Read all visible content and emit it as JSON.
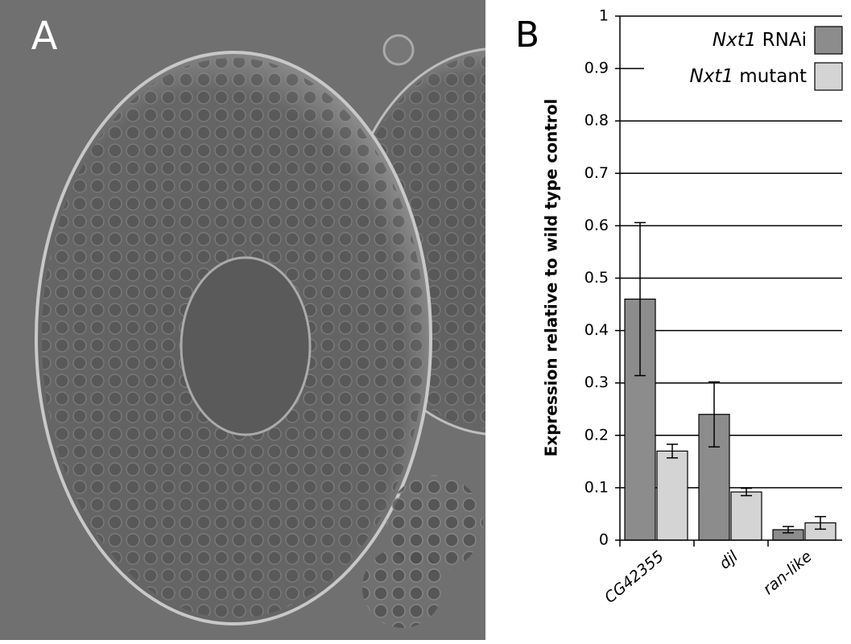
{
  "panel_labels": [
    "A",
    "B"
  ],
  "chart_data": {
    "type": "bar",
    "y_label": "Expression relative to wild type control",
    "categories": [
      "CG42355",
      "djl",
      "ran-like"
    ],
    "series": [
      {
        "name": "Nxt1 RNAi",
        "color": "#8c8c8c",
        "values": [
          0.46,
          0.24,
          0.02
        ],
        "errors": [
          0.146,
          0.062,
          0.006
        ]
      },
      {
        "name": "Nxt1 mutant",
        "color": "#d4d4d4",
        "values": [
          0.17,
          0.092,
          0.033
        ],
        "errors": [
          0.013,
          0.007,
          0.012
        ]
      }
    ],
    "ylim": [
      0,
      1
    ],
    "yticks": [
      0,
      0.1,
      0.2,
      0.3,
      0.4,
      0.5,
      0.6,
      0.7,
      0.8,
      0.9,
      1
    ],
    "grid": true,
    "legend": "upper right"
  }
}
